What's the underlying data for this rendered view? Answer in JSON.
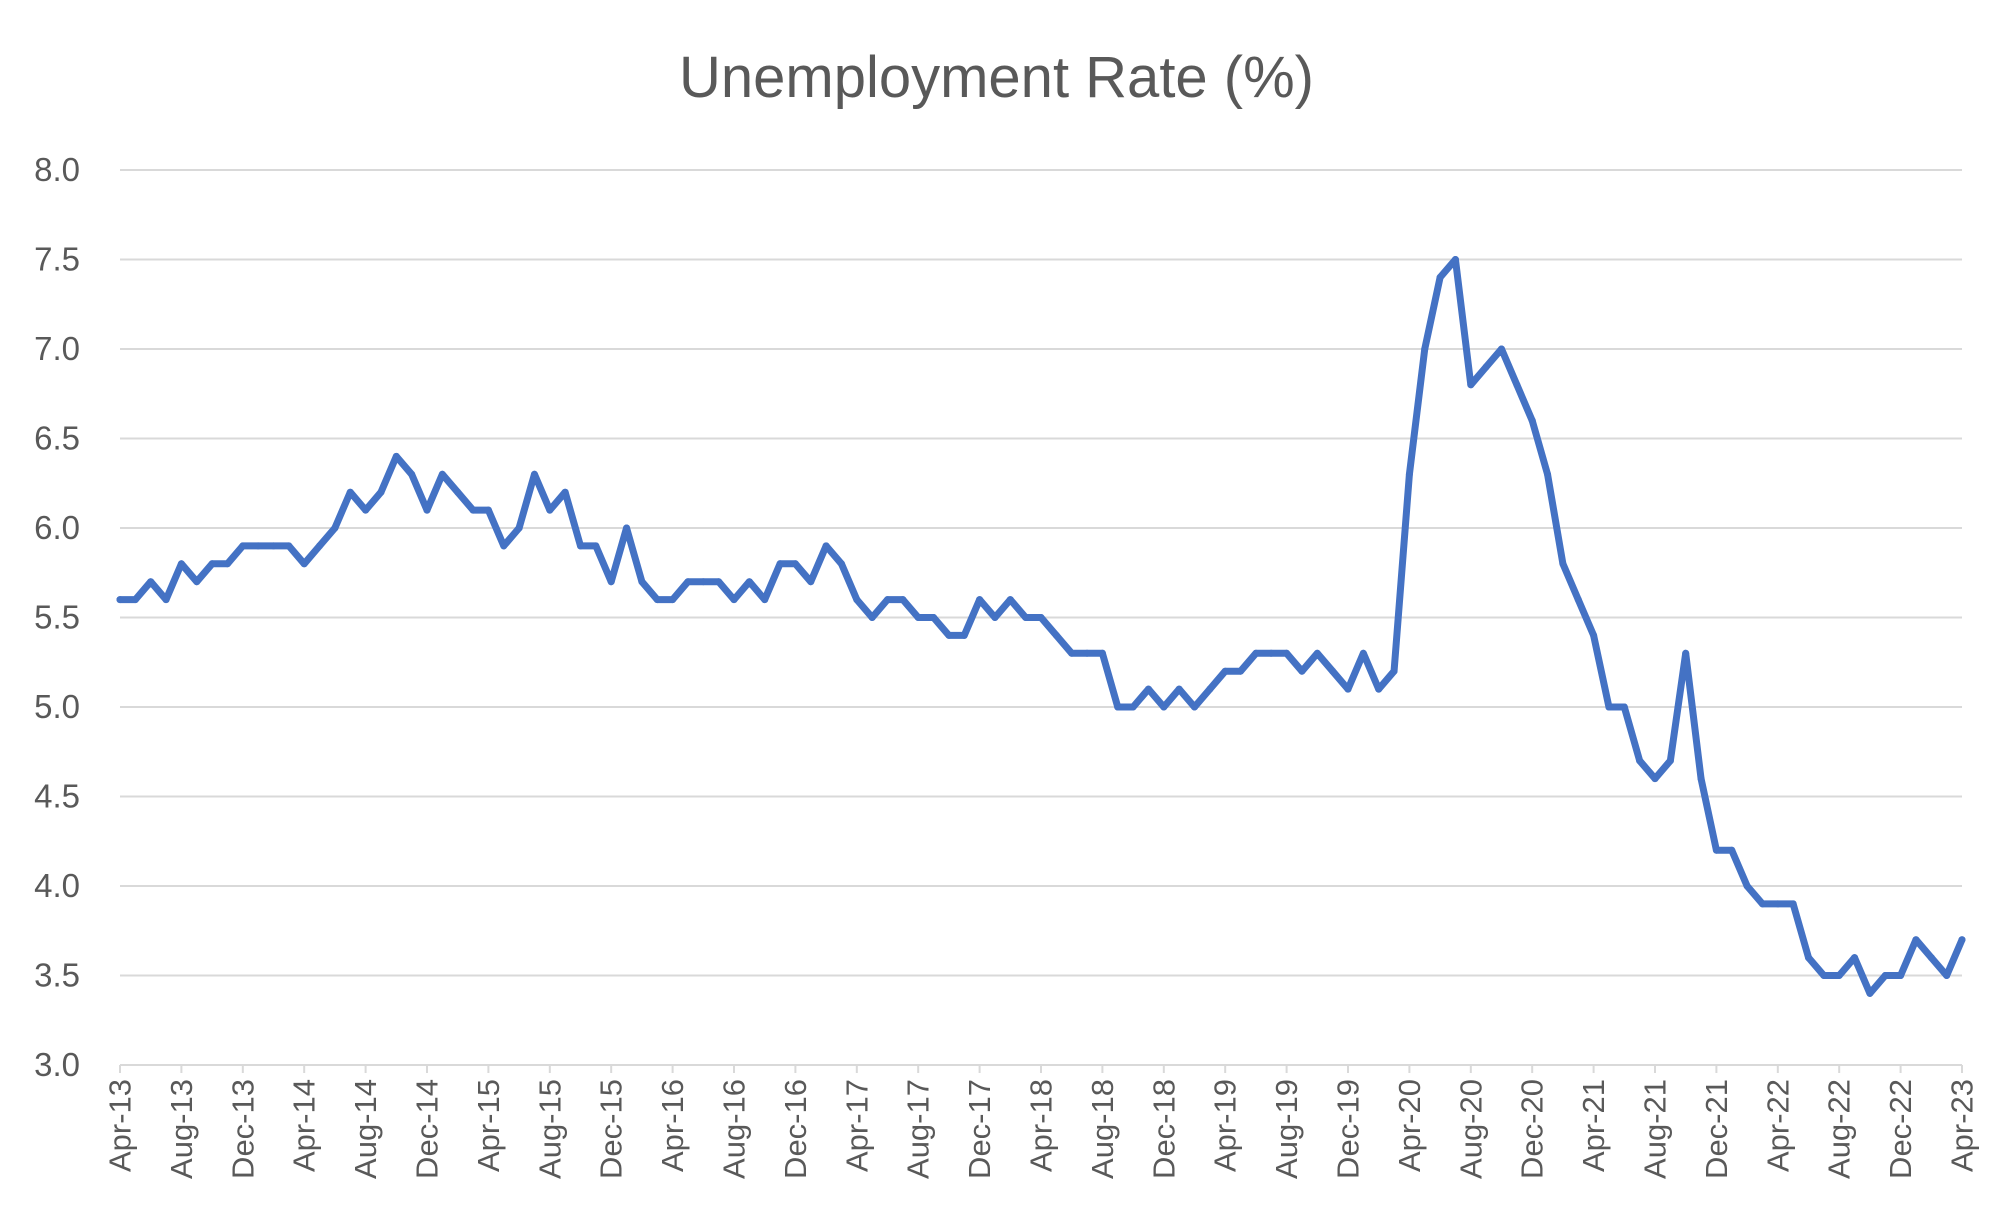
{
  "chart_data": {
    "type": "line",
    "title": "Unemployment Rate (%)",
    "xlabel": "",
    "ylabel": "",
    "ylim": [
      3.0,
      8.0
    ],
    "yticks": [
      "8.0",
      "7.5",
      "7.0",
      "6.5",
      "6.0",
      "5.5",
      "5.0",
      "4.5",
      "4.0",
      "3.5",
      "3.0"
    ],
    "xtick_labels": [
      "Apr-13",
      "Aug-13",
      "Dec-13",
      "Apr-14",
      "Aug-14",
      "Dec-14",
      "Apr-15",
      "Aug-15",
      "Dec-15",
      "Apr-16",
      "Aug-16",
      "Dec-16",
      "Apr-17",
      "Aug-17",
      "Dec-17",
      "Apr-18",
      "Aug-18",
      "Dec-18",
      "Apr-19",
      "Aug-19",
      "Dec-19",
      "Apr-20",
      "Aug-20",
      "Dec-20",
      "Apr-21",
      "Aug-21",
      "Dec-21",
      "Apr-22",
      "Aug-22",
      "Dec-22",
      "Apr-23"
    ],
    "grid": true,
    "legend": "none",
    "colors": {
      "line": "#4472C4",
      "grid": "#D9D9D9",
      "text": "#595959"
    },
    "series": [
      {
        "x": [
          "Apr-13",
          "May-13",
          "Jun-13",
          "Jul-13",
          "Aug-13",
          "Sep-13",
          "Oct-13",
          "Nov-13",
          "Dec-13",
          "Jan-14",
          "Feb-14",
          "Mar-14",
          "Apr-14",
          "May-14",
          "Jun-14",
          "Jul-14",
          "Aug-14",
          "Sep-14",
          "Oct-14",
          "Nov-14",
          "Dec-14",
          "Jan-15",
          "Feb-15",
          "Mar-15",
          "Apr-15",
          "May-15",
          "Jun-15",
          "Jul-15",
          "Aug-15",
          "Sep-15",
          "Oct-15",
          "Nov-15",
          "Dec-15",
          "Jan-16",
          "Feb-16",
          "Mar-16",
          "Apr-16",
          "May-16",
          "Jun-16",
          "Jul-16",
          "Aug-16",
          "Sep-16",
          "Oct-16",
          "Nov-16",
          "Dec-16",
          "Jan-17",
          "Feb-17",
          "Mar-17",
          "Apr-17",
          "May-17",
          "Jun-17",
          "Jul-17",
          "Aug-17",
          "Sep-17",
          "Oct-17",
          "Nov-17",
          "Dec-17",
          "Jan-18",
          "Feb-18",
          "Mar-18",
          "Apr-18",
          "May-18",
          "Jun-18",
          "Jul-18",
          "Aug-18",
          "Sep-18",
          "Oct-18",
          "Nov-18",
          "Dec-18",
          "Jan-19",
          "Feb-19",
          "Mar-19",
          "Apr-19",
          "May-19",
          "Jun-19",
          "Jul-19",
          "Aug-19",
          "Sep-19",
          "Oct-19",
          "Nov-19",
          "Dec-19",
          "Jan-20",
          "Feb-20",
          "Mar-20",
          "Apr-20",
          "May-20",
          "Jun-20",
          "Jul-20",
          "Aug-20",
          "Sep-20",
          "Oct-20",
          "Nov-20",
          "Dec-20",
          "Jan-21",
          "Feb-21",
          "Mar-21",
          "Apr-21",
          "May-21",
          "Jun-21",
          "Jul-21",
          "Aug-21",
          "Sep-21",
          "Oct-21",
          "Nov-21",
          "Dec-21",
          "Jan-22",
          "Feb-22",
          "Mar-22",
          "Apr-22",
          "May-22",
          "Jun-22",
          "Jul-22",
          "Aug-22",
          "Sep-22",
          "Oct-22",
          "Nov-22",
          "Dec-22",
          "Jan-23",
          "Feb-23",
          "Mar-23",
          "Apr-23"
        ],
        "values": [
          5.6,
          5.6,
          5.7,
          5.6,
          5.8,
          5.7,
          5.8,
          5.8,
          5.9,
          5.9,
          5.9,
          5.9,
          5.8,
          5.9,
          6.0,
          6.2,
          6.1,
          6.2,
          6.4,
          6.3,
          6.1,
          6.3,
          6.2,
          6.1,
          6.1,
          5.9,
          6.0,
          6.3,
          6.1,
          6.2,
          5.9,
          5.9,
          5.7,
          6.0,
          5.7,
          5.6,
          5.6,
          5.7,
          5.7,
          5.7,
          5.6,
          5.7,
          5.6,
          5.8,
          5.8,
          5.7,
          5.9,
          5.8,
          5.6,
          5.5,
          5.6,
          5.6,
          5.5,
          5.5,
          5.4,
          5.4,
          5.6,
          5.5,
          5.6,
          5.5,
          5.5,
          5.4,
          5.3,
          5.3,
          5.3,
          5.0,
          5.0,
          5.1,
          5.0,
          5.1,
          5.0,
          5.1,
          5.2,
          5.2,
          5.3,
          5.3,
          5.3,
          5.2,
          5.3,
          5.2,
          5.1,
          5.3,
          5.1,
          5.2,
          6.3,
          7.0,
          7.4,
          7.5,
          6.8,
          6.9,
          7.0,
          6.8,
          6.6,
          6.3,
          5.8,
          5.6,
          5.4,
          5.0,
          5.0,
          4.7,
          4.6,
          4.7,
          5.3,
          4.6,
          4.2,
          4.2,
          4.0,
          3.9,
          3.9,
          3.9,
          3.6,
          3.5,
          3.5,
          3.6,
          3.4,
          3.5,
          3.5,
          3.7,
          3.6,
          3.5,
          3.7
        ]
      }
    ]
  }
}
